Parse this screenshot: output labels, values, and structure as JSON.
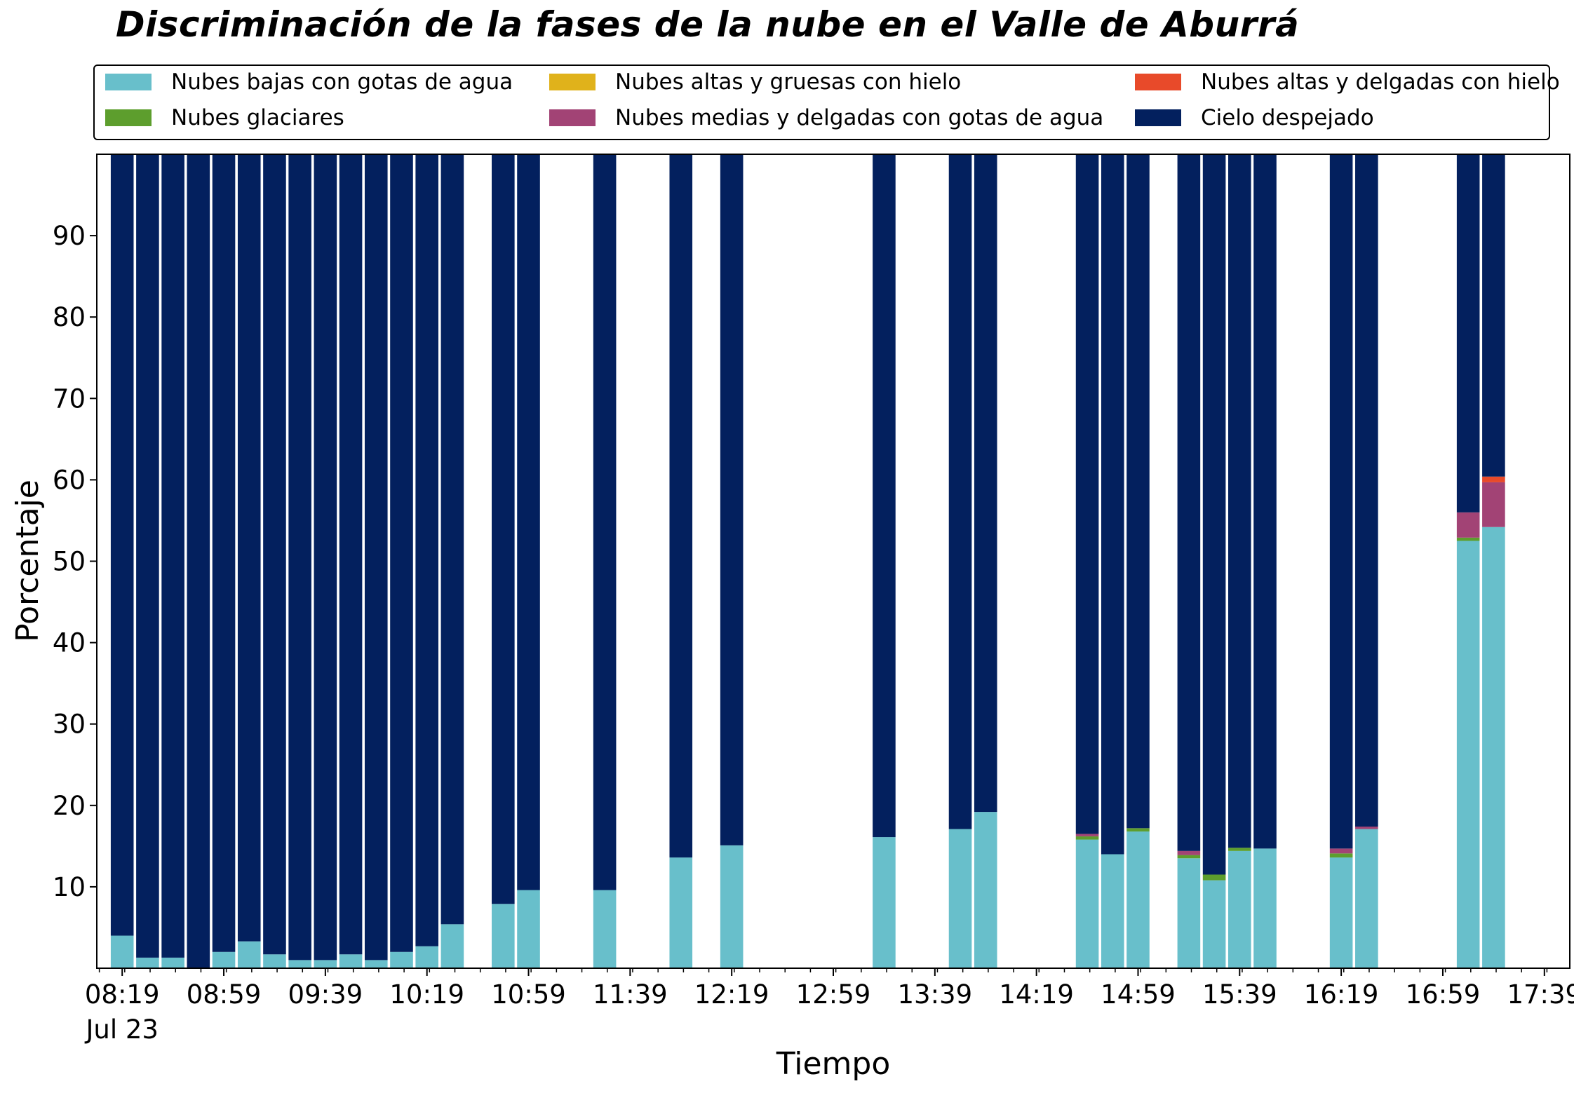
{
  "chart_data": {
    "type": "bar",
    "stacked": true,
    "title": "Discriminación de la fases de la nube en el Valle de Aburrá",
    "xlabel": "Tiempo",
    "ylabel": "Porcentaje",
    "ylim": [
      0,
      100
    ],
    "yticks": [
      10,
      20,
      30,
      40,
      50,
      60,
      70,
      80,
      90
    ],
    "x_domain": [
      "08:09",
      "17:49"
    ],
    "x_tick_labels": [
      "08:19",
      "08:59",
      "09:39",
      "10:19",
      "10:59",
      "11:39",
      "12:19",
      "12:59",
      "13:39",
      "14:19",
      "14:59",
      "15:39",
      "16:19",
      "16:59",
      "17:39"
    ],
    "x_tick_date": "Jul 23",
    "minor_tick_step_minutes": 10,
    "legend_position": "top",
    "x": [
      "08:19",
      "08:29",
      "08:39",
      "08:49",
      "08:59",
      "09:09",
      "09:19",
      "09:29",
      "09:39",
      "09:49",
      "09:59",
      "10:09",
      "10:19",
      "10:29",
      "10:49",
      "10:59",
      "11:29",
      "11:59",
      "12:19",
      "13:19",
      "13:49",
      "13:59",
      "14:39",
      "14:49",
      "14:59",
      "15:19",
      "15:29",
      "15:39",
      "15:49",
      "16:19",
      "16:29",
      "17:09",
      "17:19"
    ],
    "series": [
      {
        "name": "Nubes bajas con gotas de agua",
        "color": "#68BFCB",
        "values": [
          4,
          1.3,
          1.3,
          0,
          2,
          3.3,
          1.7,
          1,
          1,
          1.7,
          1,
          2,
          2.7,
          5.4,
          7.9,
          9.6,
          9.6,
          13.6,
          15.1,
          16.1,
          17.1,
          19.2,
          15.8,
          14,
          16.8,
          13.5,
          10.8,
          14.4,
          14.7,
          13.6,
          17.1,
          52.5,
          54.2
        ]
      },
      {
        "name": "Nubes glaciares",
        "color": "#5D9E2D",
        "values": [
          0,
          0,
          0,
          0,
          0,
          0,
          0,
          0,
          0,
          0,
          0,
          0,
          0,
          0,
          0,
          0,
          0,
          0,
          0,
          0,
          0,
          0,
          0.4,
          0,
          0.4,
          0.4,
          0.7,
          0.4,
          0,
          0.5,
          0,
          0.4,
          0
        ]
      },
      {
        "name": "Nubes altas y gruesas con hielo",
        "color": "#E0B21B",
        "values": [
          0,
          0,
          0,
          0,
          0,
          0,
          0,
          0,
          0,
          0,
          0,
          0,
          0,
          0,
          0,
          0,
          0,
          0,
          0,
          0,
          0,
          0,
          0,
          0,
          0,
          0,
          0,
          0,
          0,
          0,
          0,
          0,
          0
        ]
      },
      {
        "name": "Nubes medias y delgadas con gotas de agua",
        "color": "#A24375",
        "values": [
          0,
          0,
          0,
          0,
          0,
          0,
          0,
          0,
          0,
          0,
          0,
          0,
          0,
          0,
          0,
          0,
          0,
          0,
          0,
          0,
          0,
          0,
          0.3,
          0,
          0,
          0.5,
          0,
          0,
          0,
          0.6,
          0.3,
          3.1,
          5.5
        ]
      },
      {
        "name": "Nubes altas y delgadas con hielo",
        "color": "#E84A2A",
        "values": [
          0,
          0,
          0,
          0,
          0,
          0,
          0,
          0,
          0,
          0,
          0,
          0,
          0,
          0,
          0,
          0,
          0,
          0,
          0,
          0,
          0,
          0,
          0,
          0,
          0,
          0,
          0,
          0,
          0,
          0,
          0,
          0,
          0.7
        ]
      },
      {
        "name": "Cielo despejado",
        "color": "#03205E",
        "values": [
          96,
          98.7,
          98.7,
          100,
          98,
          96.7,
          98.3,
          99,
          99,
          98.3,
          99,
          98,
          97.3,
          94.6,
          92.1,
          90.4,
          90.4,
          86.4,
          84.9,
          83.9,
          82.9,
          80.8,
          83.5,
          86,
          82.8,
          85.6,
          88.5,
          85.2,
          85.3,
          85.3,
          82.6,
          44,
          39.6
        ]
      }
    ]
  }
}
